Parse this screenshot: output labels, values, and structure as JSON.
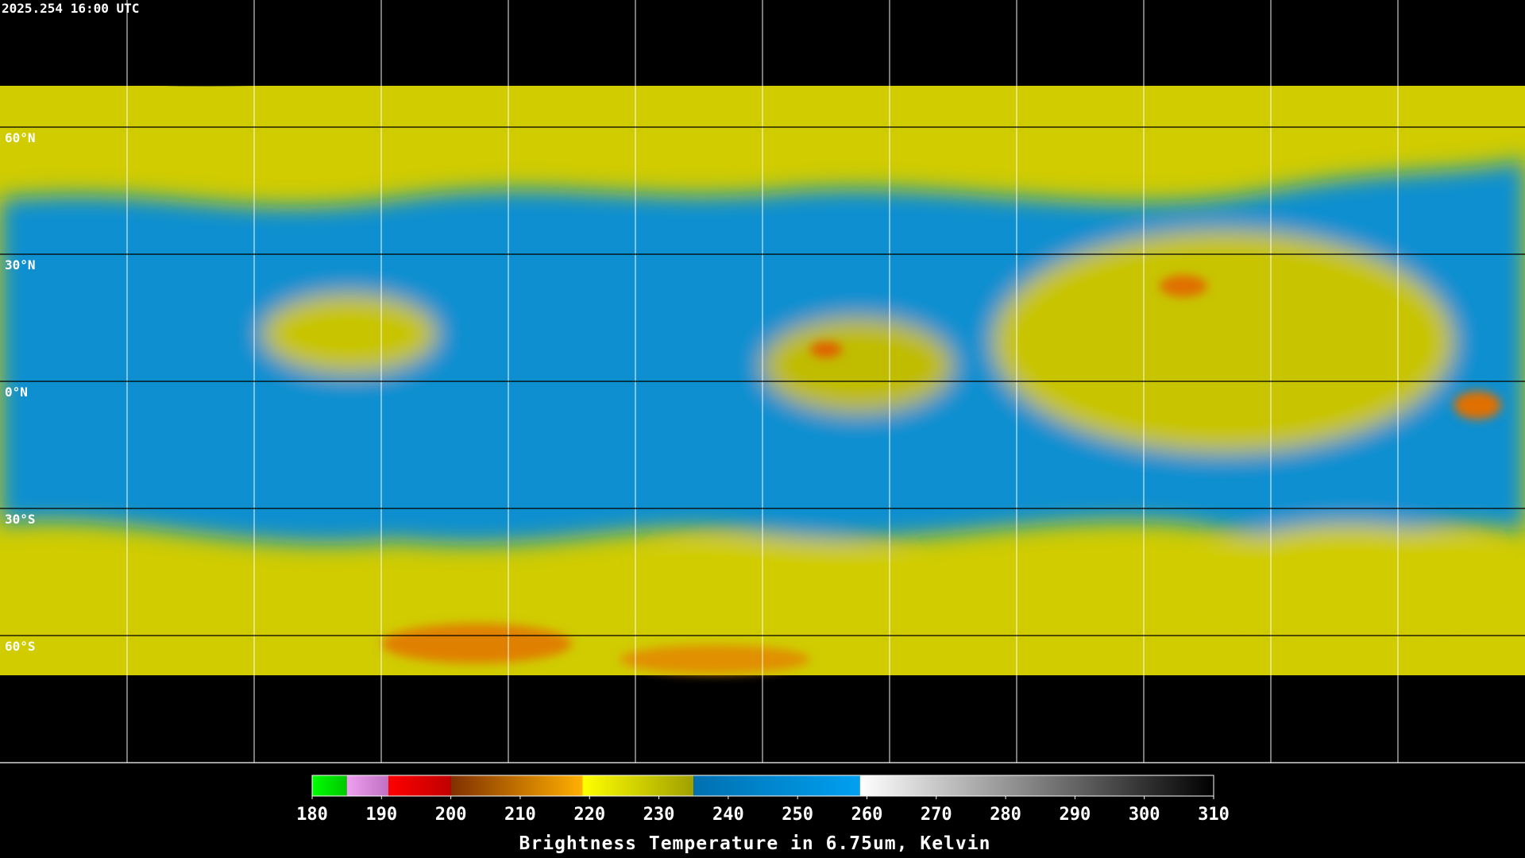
{
  "header": {
    "timestamp": "2025.254 16:00 UTC"
  },
  "map": {
    "lat_labels": [
      "60°N",
      "30°N",
      "0°N",
      "30°S",
      "60°S"
    ]
  },
  "colorbar": {
    "title": "Brightness Temperature in 6.75um, Kelvin",
    "ticks": [
      180,
      190,
      200,
      210,
      220,
      230,
      240,
      250,
      260,
      270,
      280,
      290,
      300,
      310
    ],
    "segments": [
      {
        "from": 180,
        "to": 185,
        "color_start": "#00ff00",
        "color_end": "#00c800"
      },
      {
        "from": 185,
        "to": 191,
        "color_start": "#f0a0f0",
        "color_end": "#c070c0"
      },
      {
        "from": 191,
        "to": 200,
        "color_start": "#ff0000",
        "color_end": "#c00000"
      },
      {
        "from": 200,
        "to": 219,
        "color_start": "#803000",
        "color_end": "#ffb000"
      },
      {
        "from": 219,
        "to": 235,
        "color_start": "#ffff00",
        "color_end": "#a0a000"
      },
      {
        "from": 235,
        "to": 259,
        "color_start": "#0070b0",
        "color_end": "#00a0f0"
      },
      {
        "from": 259,
        "to": 310,
        "color_start": "#ffffff",
        "color_end": "#000000"
      }
    ]
  }
}
